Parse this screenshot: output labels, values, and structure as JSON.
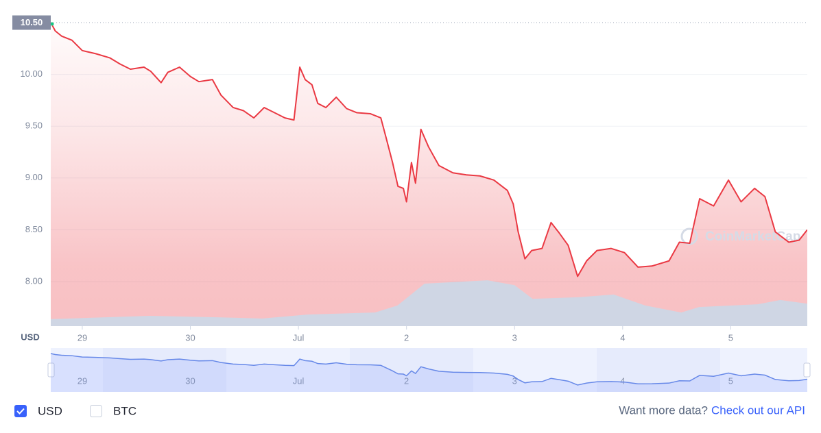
{
  "chart_data": {
    "type": "line",
    "axis_label": "USD",
    "watermark": "CoinMarketCap",
    "reference_line": {
      "value": 10.5,
      "label": "10.50"
    },
    "x": [
      -7,
      -6,
      -4.6,
      -2.3,
      0,
      3,
      6.1,
      8.4,
      10.7,
      13.7,
      15.2,
      17.5,
      19,
      21.6,
      24,
      25.9,
      28.9,
      30.8,
      33.5,
      35.8,
      38.1,
      40.4,
      42.7,
      45,
      47,
      47.5,
      48.3,
      49.5,
      51,
      52.3,
      54.1,
      56.4,
      58.7,
      61,
      64,
      66.3,
      67.4,
      68.9,
      70.1,
      71.3,
      72,
      73.1,
      74,
      75.2,
      76.9,
      79.2,
      82.3,
      85.3,
      88.3,
      91.4,
      94.4,
      95.7,
      96.8,
      98.3,
      99.8,
      102.1,
      104.1,
      105.9,
      107.9,
      110,
      112,
      114.3,
      117.4,
      120.4,
      123.4,
      126.5,
      130.3,
      132.6,
      134.9,
      137.1,
      140.2,
      143.5,
      146.3,
      149.3,
      151.6,
      153.9,
      156.9,
      159.2,
      161
    ],
    "series": [
      {
        "name": "USD",
        "color": "#ea3943",
        "values": [
          10.5,
          10.42,
          10.37,
          10.33,
          10.23,
          10.2,
          10.16,
          10.1,
          10.05,
          10.07,
          10.03,
          9.92,
          10.02,
          10.07,
          9.98,
          9.93,
          9.95,
          9.8,
          9.68,
          9.65,
          9.58,
          9.68,
          9.63,
          9.58,
          9.56,
          9.75,
          10.07,
          9.95,
          9.9,
          9.72,
          9.68,
          9.78,
          9.67,
          9.63,
          9.62,
          9.58,
          9.4,
          9.15,
          8.92,
          8.9,
          8.77,
          9.15,
          8.95,
          9.47,
          9.3,
          9.12,
          9.05,
          9.03,
          9.02,
          8.98,
          8.88,
          8.75,
          8.48,
          8.22,
          8.3,
          8.32,
          8.57,
          8.47,
          8.35,
          8.05,
          8.2,
          8.3,
          8.32,
          8.28,
          8.14,
          8.15,
          8.2,
          8.38,
          8.37,
          8.8,
          8.73,
          8.98,
          8.77,
          8.9,
          8.82,
          8.48,
          8.38,
          8.4,
          8.5
        ]
      },
      {
        "name": "BTC",
        "color": "#cfd6e4",
        "axis": "y2",
        "x": [
          -7,
          15,
          30,
          40,
          50,
          65,
          70,
          76,
          90,
          96,
          100,
          110,
          118,
          125,
          133,
          137,
          150,
          155,
          161
        ],
        "values": [
          2.3,
          3.4,
          2.9,
          2.5,
          3.8,
          4.5,
          6.8,
          14,
          15.1,
          13.5,
          9,
          9.5,
          10.4,
          6.8,
          4.5,
          6.3,
          7.2,
          8.6,
          7.4
        ]
      }
    ],
    "xlim": [
      -7,
      161
    ],
    "xticks": [
      {
        "value": 0,
        "label": "29"
      },
      {
        "value": 24,
        "label": "30"
      },
      {
        "value": 48,
        "label": "Jul"
      },
      {
        "value": 72,
        "label": "2"
      },
      {
        "value": 96,
        "label": "3"
      },
      {
        "value": 120,
        "label": "4"
      },
      {
        "value": 144,
        "label": "5"
      }
    ],
    "ylim": [
      7.57,
      10.5
    ],
    "yticks": [
      {
        "value": 8,
        "label": "8.00"
      },
      {
        "value": 8.5,
        "label": "8.50"
      },
      {
        "value": 9,
        "label": "9.00"
      },
      {
        "value": 9.5,
        "label": "9.50"
      },
      {
        "value": 10,
        "label": "10.00"
      }
    ],
    "y2lim": [
      0,
      100
    ],
    "grid": true,
    "legend": [
      {
        "label": "USD",
        "checked": true
      },
      {
        "label": "BTC",
        "checked": false
      }
    ],
    "footer": {
      "prompt": "Want more data?",
      "link": "Check out our API"
    }
  }
}
